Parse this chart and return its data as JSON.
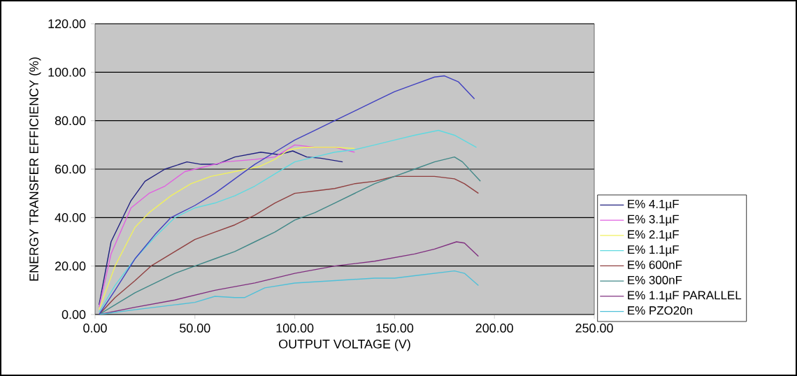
{
  "chart_data": {
    "type": "line",
    "xlabel": "OUTPUT VOLTAGE (V)",
    "ylabel": "ENERGY TRANSFER EFFICIENCY (%)",
    "xlim": [
      0,
      250
    ],
    "ylim": [
      0,
      120
    ],
    "xticks": [
      {
        "value": 0,
        "label": "0.00"
      },
      {
        "value": 50,
        "label": "50.00"
      },
      {
        "value": 100,
        "label": "100.00"
      },
      {
        "value": 150,
        "label": "150.00"
      },
      {
        "value": 200,
        "label": "200.00"
      },
      {
        "value": 250,
        "label": "250.00"
      }
    ],
    "yticks": [
      {
        "value": 0,
        "label": "0.00"
      },
      {
        "value": 20,
        "label": "20.00"
      },
      {
        "value": 40,
        "label": "40.00"
      },
      {
        "value": 60,
        "label": "60.00"
      },
      {
        "value": 80,
        "label": "80.00"
      },
      {
        "value": 100,
        "label": "100.00"
      },
      {
        "value": 120,
        "label": "120.00"
      }
    ],
    "grid": "y",
    "legend": "right",
    "marker": "none",
    "line_style": "solid",
    "series": [
      {
        "name": "E% 4.1µF",
        "color": "#202080",
        "x": [
          2,
          8,
          18,
          25,
          35,
          46,
          53,
          61,
          70,
          83,
          92,
          99,
          106,
          113,
          124
        ],
        "values": [
          4,
          30,
          47,
          55,
          60,
          63,
          62,
          62,
          65,
          67,
          66,
          67.5,
          65,
          64.5,
          63
        ]
      },
      {
        "name": "E% 3.1µF",
        "color": "#e060e0",
        "x": [
          2,
          8,
          18,
          27,
          35,
          45,
          55,
          65,
          80,
          90,
          100,
          110,
          120,
          130
        ],
        "values": [
          3,
          25,
          44,
          50,
          53,
          59,
          61,
          63,
          64,
          65,
          70,
          69,
          69,
          67
        ]
      },
      {
        "name": "E% 2.1µF",
        "color": "#f0f060",
        "x": [
          2,
          10,
          20,
          27,
          38,
          48,
          58,
          70,
          82,
          90,
          97,
          105,
          120,
          130
        ],
        "values": [
          2,
          20,
          36,
          42,
          49,
          54,
          57,
          59,
          61,
          64,
          68,
          69,
          69,
          68.5
        ]
      },
      {
        "name": "E% 1.1µF",
        "color": "#5fd9e0",
        "x": [
          2,
          10,
          20,
          30,
          40,
          50,
          60,
          70,
          80,
          90,
          100,
          110,
          120,
          130,
          140,
          150,
          160,
          172,
          180,
          191
        ],
        "values": [
          1,
          12,
          23,
          32,
          40,
          44,
          46,
          49,
          53,
          58,
          63,
          65,
          67,
          68,
          70,
          72,
          74,
          76,
          74,
          69
        ]
      },
      {
        "name": "E% 600nF",
        "color": "#904040",
        "x": [
          2,
          10,
          20,
          28,
          40,
          50,
          60,
          70,
          80,
          90,
          100,
          110,
          120,
          130,
          140,
          150,
          160,
          170,
          180,
          185,
          192
        ],
        "values": [
          0,
          7,
          14,
          20,
          26,
          31,
          34,
          37,
          41,
          46,
          50,
          51,
          52,
          54,
          55,
          57,
          57,
          57,
          56,
          54,
          50
        ]
      },
      {
        "name": "E% 300nF",
        "color": "#408888",
        "x": [
          2,
          10,
          20,
          30,
          40,
          50,
          60,
          70,
          80,
          90,
          100,
          110,
          120,
          130,
          140,
          150,
          160,
          170,
          180,
          184,
          193
        ],
        "values": [
          0,
          4,
          9,
          13,
          17,
          20,
          23,
          26,
          30,
          34,
          39,
          42,
          46,
          50,
          54,
          57,
          60,
          63,
          65,
          63,
          55
        ]
      },
      {
        "name": "E% 1.1µF PARALLEL",
        "color": "#803080",
        "x": [
          2,
          20,
          40,
          60,
          80,
          100,
          120,
          140,
          160,
          170,
          181,
          185,
          192
        ],
        "values": [
          0,
          3,
          6,
          10,
          13,
          17,
          20,
          22,
          25,
          27,
          30,
          29.5,
          24
        ]
      },
      {
        "name": "E% PZO20n",
        "color": "#50c0d8",
        "x": [
          2,
          20,
          40,
          50,
          60,
          70,
          75,
          85,
          100,
          120,
          140,
          150,
          160,
          170,
          180,
          185,
          192
        ],
        "values": [
          0,
          2,
          4,
          5,
          7.5,
          7,
          7,
          11,
          13,
          14,
          15,
          15,
          16,
          17,
          18,
          17,
          12
        ]
      },
      {
        "color": "#4040c0",
        "x": [
          2,
          10,
          20,
          30,
          38,
          50,
          60,
          70,
          80,
          90,
          100,
          110,
          120,
          130,
          140,
          150,
          160,
          170,
          175,
          182,
          190
        ],
        "values": [
          0,
          10,
          23,
          33,
          40,
          45,
          50,
          56,
          62,
          67,
          72,
          76,
          80,
          84,
          88,
          92,
          95,
          98,
          98.5,
          96,
          89
        ]
      }
    ]
  }
}
